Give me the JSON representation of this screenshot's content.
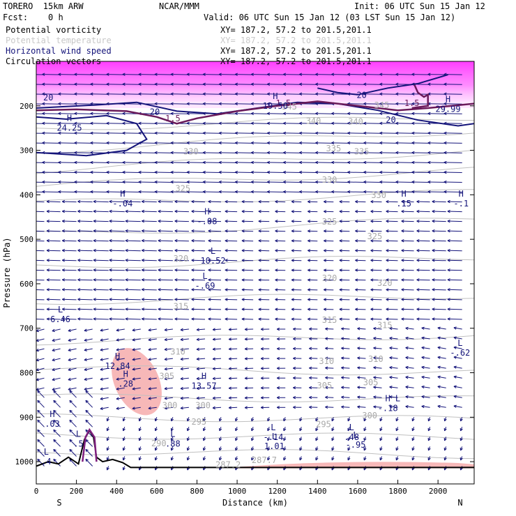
{
  "header": {
    "model": "TORERO  15km ARW",
    "center": "NCAR/MMM",
    "init": "Init: 06 UTC Sun 15 Jan 12",
    "fcst": "Fcst:    0 h",
    "valid": "Valid: 06 UTC Sun 15 Jan 12 (03 LST Sun 15 Jan 12)"
  },
  "legend": [
    {
      "label": "Potential vorticity",
      "xy": "XY= 187.2, 57.2 to 201.5,201.1",
      "color": "#7f1f7f"
    },
    {
      "label": "Potential temperature",
      "xy": "XY= 187.2, 57.2 to 201.5,201.1",
      "color": "#c8c8c8"
    },
    {
      "label": "Horizontal wind speed",
      "xy": "XY= 187.2, 57.2 to 201.5,201.1",
      "color": "#14147a"
    },
    {
      "label": "Circulation vectors",
      "xy": "XY= 187.2, 57.2 to 201.5,201.1",
      "color": "#000000"
    }
  ],
  "chart_data": {
    "type": "cross-section",
    "xlabel": "Distance (km)",
    "ylabel": "Pressure (hPa)",
    "xlim": [
      0,
      2180
    ],
    "ylim": [
      1050,
      100
    ],
    "x_ticks": [
      0,
      200,
      400,
      600,
      800,
      1000,
      1200,
      1400,
      1600,
      1800,
      2000
    ],
    "x_tick_labels": [
      "0",
      "200",
      "400",
      "600",
      "800",
      "1000",
      "1200",
      "1400",
      "1600",
      "1800",
      "2000"
    ],
    "y_ticks": [
      200,
      300,
      400,
      500,
      600,
      700,
      800,
      900,
      1000
    ],
    "y_tick_labels": [
      "200",
      "300",
      "400",
      "500",
      "600",
      "700",
      "800",
      "900",
      "1000"
    ],
    "endpoints": {
      "left": "S",
      "right": "N"
    },
    "theta_labels": [
      {
        "text": "340",
        "x": 1380,
        "p": 240
      },
      {
        "text": "340",
        "x": 1590,
        "p": 242
      },
      {
        "text": "345",
        "x": 1260,
        "p": 208
      },
      {
        "text": "345",
        "x": 1720,
        "p": 205
      },
      {
        "text": "335",
        "x": 1480,
        "p": 302
      },
      {
        "text": "335",
        "x": 1620,
        "p": 309
      },
      {
        "text": "330",
        "x": 770,
        "p": 309
      },
      {
        "text": "330",
        "x": 1460,
        "p": 373
      },
      {
        "text": "330",
        "x": 1705,
        "p": 407
      },
      {
        "text": "325",
        "x": 730,
        "p": 392
      },
      {
        "text": "325",
        "x": 1460,
        "p": 467
      },
      {
        "text": "325",
        "x": 1685,
        "p": 500
      },
      {
        "text": "320",
        "x": 720,
        "p": 550
      },
      {
        "text": "320",
        "x": 1460,
        "p": 594
      },
      {
        "text": "320",
        "x": 1735,
        "p": 605
      },
      {
        "text": "315",
        "x": 720,
        "p": 657
      },
      {
        "text": "315",
        "x": 1460,
        "p": 688
      },
      {
        "text": "315",
        "x": 1735,
        "p": 700
      },
      {
        "text": "310",
        "x": 705,
        "p": 759
      },
      {
        "text": "310",
        "x": 1445,
        "p": 780
      },
      {
        "text": "310",
        "x": 1690,
        "p": 776
      },
      {
        "text": "305",
        "x": 650,
        "p": 814
      },
      {
        "text": "305",
        "x": 1435,
        "p": 835
      },
      {
        "text": "305",
        "x": 1665,
        "p": 828
      },
      {
        "text": "300",
        "x": 665,
        "p": 880
      },
      {
        "text": "300",
        "x": 830,
        "p": 880
      },
      {
        "text": "300",
        "x": 1660,
        "p": 903
      },
      {
        "text": "295",
        "x": 810,
        "p": 917
      },
      {
        "text": "295",
        "x": 1430,
        "p": 922
      },
      {
        "text": "290",
        "x": 610,
        "p": 965
      },
      {
        "text": "287.2",
        "x": 955,
        "p": 1013
      },
      {
        "text": "287.7",
        "x": 1135,
        "p": 1003
      }
    ],
    "wind_speed_labels": [
      {
        "text": "20",
        "x": 60,
        "p": 188
      },
      {
        "text": "20",
        "x": 590,
        "p": 220
      },
      {
        "text": "20",
        "x": 1620,
        "p": 182
      },
      {
        "text": "20",
        "x": 1765,
        "p": 238
      }
    ],
    "pv_labels": [
      {
        "text": "1.5",
        "x": 1230,
        "p": 200
      },
      {
        "text": "1.5",
        "x": 680,
        "p": 235
      },
      {
        "text": "1.5",
        "x": 1870,
        "p": 200
      }
    ],
    "extrema": [
      {
        "kind": "H",
        "value": "19.56",
        "x": 1190,
        "p": 200,
        "color": "#14147a"
      },
      {
        "kind": "H",
        "value": "29.99",
        "x": 2050,
        "p": 207,
        "color": "#14147a"
      },
      {
        "kind": "H",
        "value": "24.25",
        "x": 165,
        "p": 250,
        "color": "#14147a"
      },
      {
        "kind": "H",
        "value": "-.04",
        "x": 430,
        "p": 420,
        "color": "#14147a"
      },
      {
        "kind": "H",
        "value": ".15",
        "x": 1830,
        "p": 420,
        "color": "#14147a"
      },
      {
        "kind": "H",
        "value": "-.1",
        "x": 2115,
        "p": 420,
        "color": "#14147a"
      },
      {
        "kind": "H",
        "value": "-.08",
        "x": 850,
        "p": 460,
        "color": "#14147a"
      },
      {
        "kind": "L",
        "value": "10.52",
        "x": 880,
        "p": 548,
        "color": "#14147a"
      },
      {
        "kind": "L",
        "value": "-.69",
        "x": 840,
        "p": 605,
        "color": "#14147a"
      },
      {
        "kind": "L",
        "value": "6.46",
        "x": 120,
        "p": 680,
        "color": "#14147a"
      },
      {
        "kind": "L",
        "value": "-.62",
        "x": 2110,
        "p": 755,
        "color": "#14147a"
      },
      {
        "kind": "H",
        "value": "12.84",
        "x": 405,
        "p": 785,
        "color": "#14147a"
      },
      {
        "kind": "H",
        "value": ".28",
        "x": 445,
        "p": 825,
        "color": "#14147a"
      },
      {
        "kind": "H",
        "value": "13.57",
        "x": 835,
        "p": 830,
        "color": "#14147a"
      },
      {
        "kind": "H",
        "value": "-.18",
        "x": 1750,
        "p": 880,
        "color": "#14147a"
      },
      {
        "kind": "L",
        "value": "",
        "x": 1800,
        "p": 880,
        "color": "#14147a"
      },
      {
        "kind": "H",
        "value": ".03",
        "x": 80,
        "p": 915,
        "color": "#14147a"
      },
      {
        "kind": "L",
        "value": ".5",
        "x": 210,
        "p": 960,
        "color": "#14147a"
      },
      {
        "kind": "L",
        "value": ".88",
        "x": 680,
        "p": 960,
        "color": "#14147a"
      },
      {
        "kind": "L",
        "value": "-.14",
        "x": 1180,
        "p": 945,
        "color": "#14147a"
      },
      {
        "kind": "L",
        "value": "1.01",
        "x": 1185,
        "p": 965,
        "color": "#14147a"
      },
      {
        "kind": "L",
        "value": ".48",
        "x": 1570,
        "p": 945,
        "color": "#14147a"
      },
      {
        "kind": "L",
        "value": "-.95",
        "x": 1590,
        "p": 962,
        "color": "#14147a"
      },
      {
        "kind": "L",
        "value": ".4",
        "x": 50,
        "p": 1000,
        "color": "#14147a"
      }
    ],
    "pink_regions": [
      {
        "name": "upper-pv-band",
        "x0": 0,
        "x1": 2180,
        "p0": 100,
        "p1": 190
      },
      {
        "name": "mid-level-blob",
        "cx": 500,
        "cp": 820,
        "rx": 110,
        "rp": 80
      },
      {
        "name": "surface-band",
        "x0": 1000,
        "x1": 2180,
        "p0": 1000,
        "p1": 1015
      }
    ]
  }
}
